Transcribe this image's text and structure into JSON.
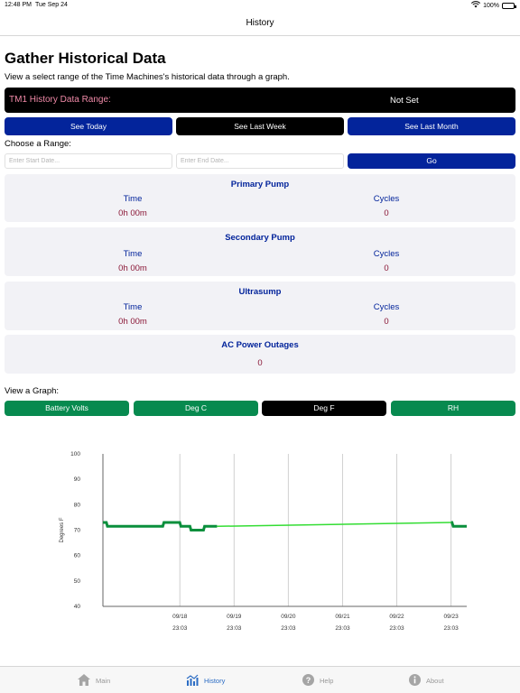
{
  "status_bar": {
    "time": "12:48 PM",
    "date": "Tue Sep 24",
    "battery": "100%"
  },
  "nav": {
    "title": "History"
  },
  "header": {
    "title": "Gather Historical Data",
    "subtitle": "View a select range of the Time Machines's historical data through a graph."
  },
  "range": {
    "label": "TM1 History Data Range:",
    "value": "Not Set"
  },
  "quick_buttons": {
    "today": "See Today",
    "week": "See Last Week",
    "month": "See Last Month"
  },
  "choose_range": {
    "label": "Choose a Range:",
    "start_placeholder": "Enter Start Date...",
    "end_placeholder": "Enter End Date...",
    "go": "Go"
  },
  "cards": {
    "primary": {
      "title": "Primary Pump",
      "time_label": "Time",
      "cycles_label": "Cycles",
      "time": "0h 00m",
      "cycles": "0"
    },
    "secondary": {
      "title": "Secondary Pump",
      "time_label": "Time",
      "cycles_label": "Cycles",
      "time": "0h 00m",
      "cycles": "0"
    },
    "ultrasump": {
      "title": "Ultrasump",
      "time_label": "Time",
      "cycles_label": "Cycles",
      "time": "0h 00m",
      "cycles": "0"
    },
    "ac": {
      "title": "AC Power Outages",
      "value": "0"
    }
  },
  "graph": {
    "label": "View a Graph:",
    "buttons": {
      "battery": "Battery Volts",
      "degc": "Deg C",
      "degf": "Deg F",
      "rh": "RH"
    },
    "selected": "Deg F"
  },
  "chart_data": {
    "type": "line",
    "title": "",
    "xlabel": "",
    "ylabel": "Degrees F",
    "ylim": [
      40,
      100
    ],
    "yticks": [
      40,
      50,
      60,
      70,
      80,
      90,
      100
    ],
    "xticks": [
      {
        "date": "09/18",
        "time": "23:03"
      },
      {
        "date": "09/19",
        "time": "23:03"
      },
      {
        "date": "09/20",
        "time": "23:03"
      },
      {
        "date": "09/21",
        "time": "23:03"
      },
      {
        "date": "09/22",
        "time": "23:03"
      },
      {
        "date": "09/23",
        "time": "23:03"
      }
    ],
    "grid": true,
    "series": [
      {
        "color": "#0a8f3c",
        "points": [
          [
            "09/17 13:00",
            73
          ],
          [
            "09/17 14:30",
            73
          ],
          [
            "09/17 15:00",
            71.5
          ],
          [
            "09/18 15:30",
            71.5
          ],
          [
            "09/18 16:00",
            73
          ],
          [
            "09/18 23:00",
            73
          ],
          [
            "09/18 23:30",
            71.5
          ],
          [
            "09/19 03:30",
            71.5
          ],
          [
            "09/19 04:00",
            70
          ],
          [
            "09/19 09:30",
            70
          ],
          [
            "09/19 10:00",
            71.5
          ],
          [
            "09/19 15:30",
            71.5
          ]
        ]
      },
      {
        "color": "#33dd33",
        "points": [
          [
            "09/19 15:30",
            71.5
          ],
          [
            "09/23 23:03",
            73
          ]
        ]
      },
      {
        "color": "#0a8f3c",
        "points": [
          [
            "09/23 23:03",
            73
          ],
          [
            "09/23 23:30",
            73
          ],
          [
            "09/24 00:00",
            71.5
          ],
          [
            "09/24 06:00",
            71.5
          ]
        ]
      }
    ]
  },
  "tabs": {
    "main": "Main",
    "history": "History",
    "help": "Help",
    "about": "About"
  },
  "colors": {
    "primary_blue": "#03249b",
    "green": "#078a4f",
    "maroon": "#8a1736",
    "pink": "#f08aa8",
    "card_bg": "#f2f2f6"
  },
  "icons": {
    "wifi": "wifi-icon",
    "battery": "battery-icon",
    "main": "house-icon",
    "history": "chart-icon",
    "help": "question-icon",
    "about": "info-icon"
  }
}
